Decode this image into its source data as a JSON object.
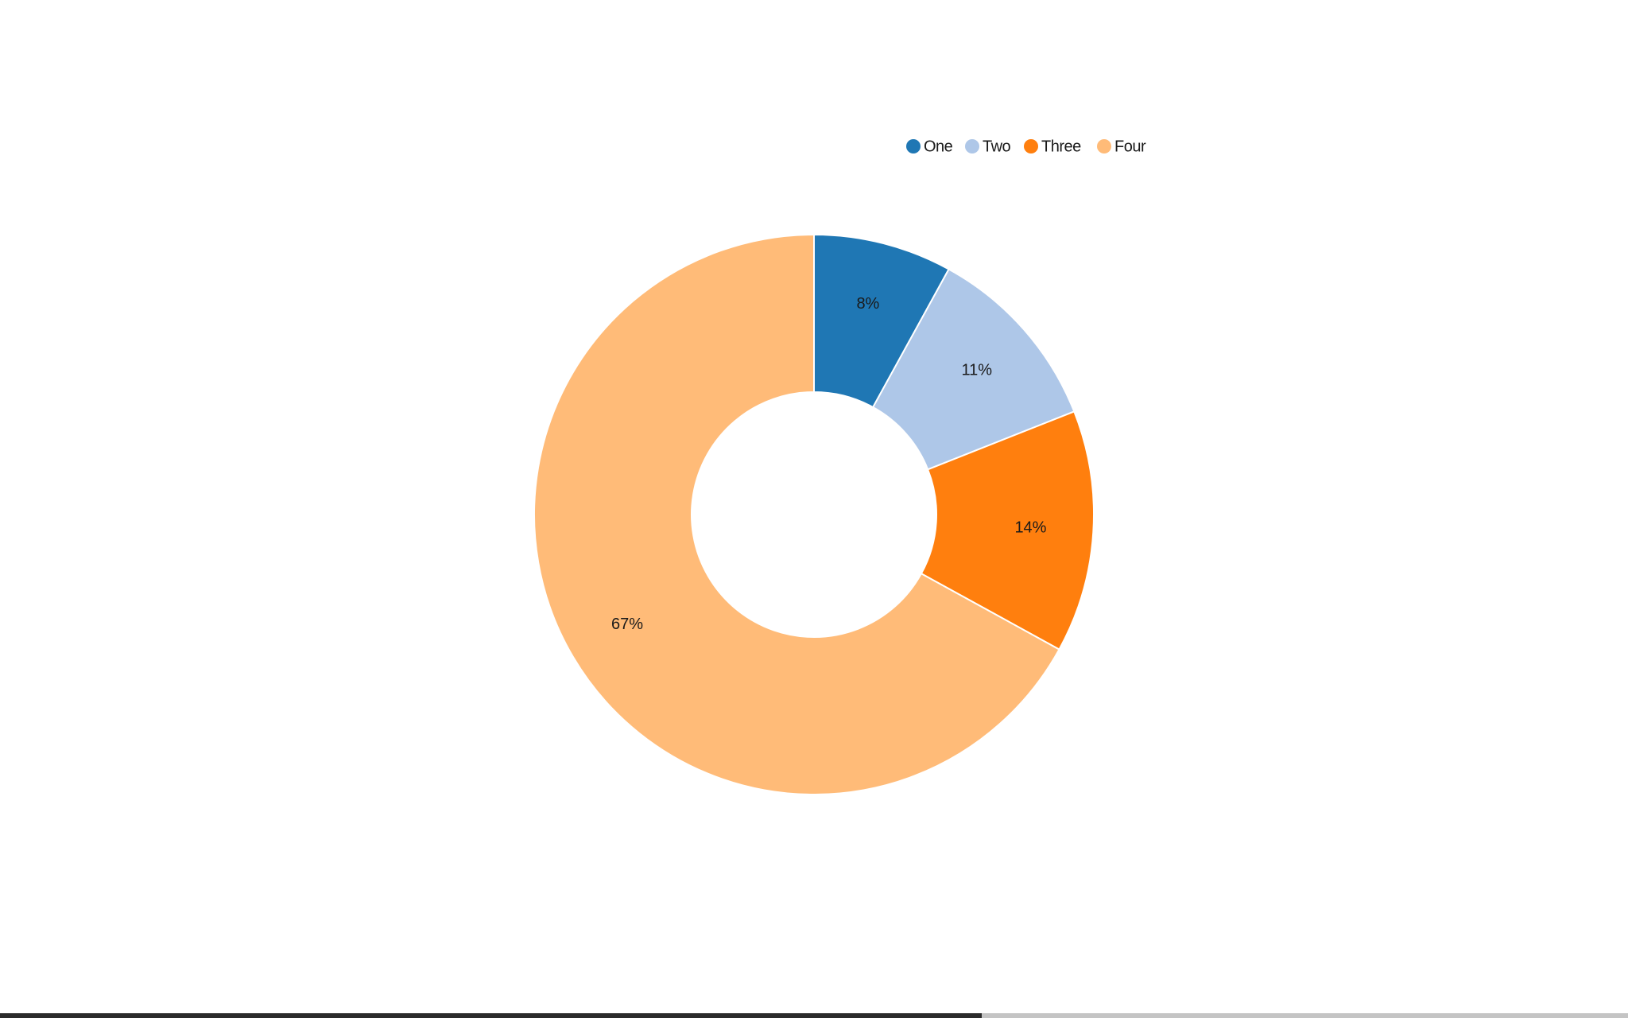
{
  "chart_data": {
    "type": "pie",
    "donut": true,
    "categories": [
      "One",
      "Two",
      "Three",
      "Four"
    ],
    "values": [
      8,
      11,
      14,
      67
    ],
    "labels": [
      "8%",
      "11%",
      "14%",
      "67%"
    ],
    "colors": [
      "#1f77b4",
      "#aec7e8",
      "#ff7f0e",
      "#ffbb78"
    ],
    "legend_position": "top-right"
  },
  "progress": {
    "fraction": 0.603
  }
}
